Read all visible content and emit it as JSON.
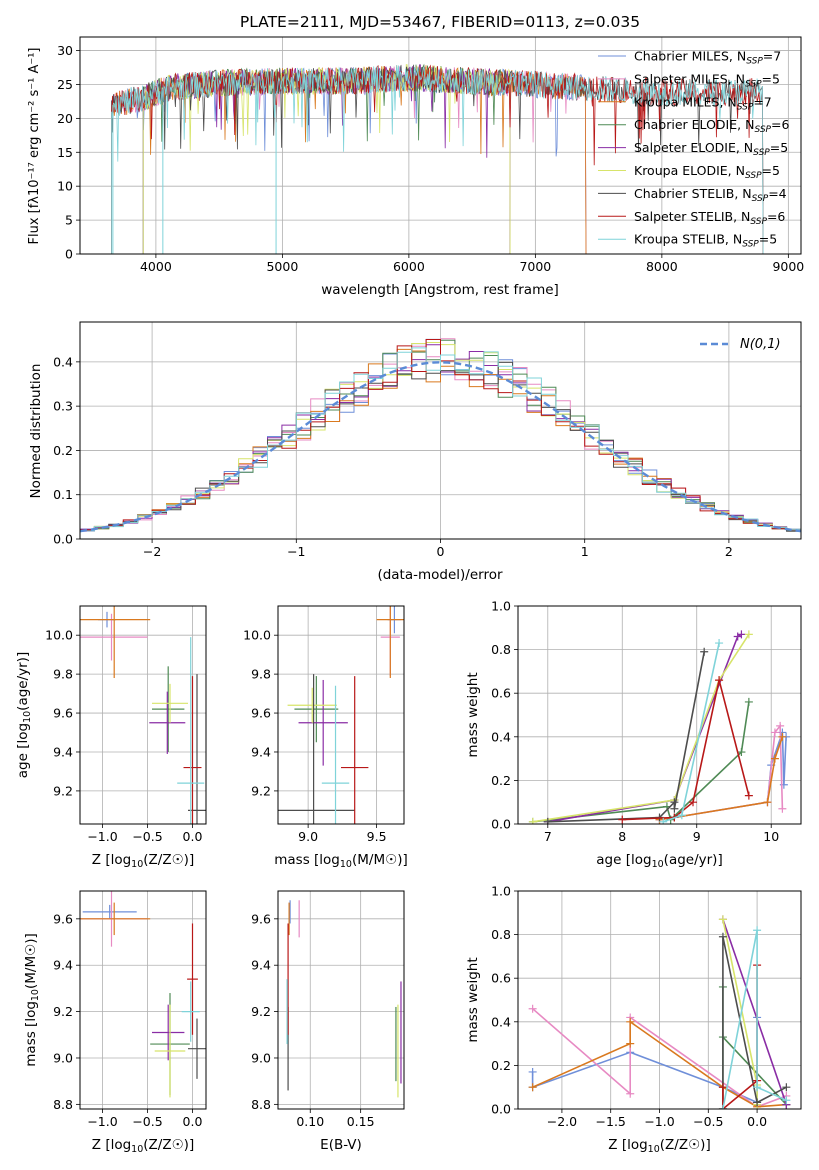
{
  "colors": {
    "frame": "#000000",
    "grid": "#b0b0b0",
    "gauss": "#5b8bd6",
    "series": [
      "#6f8fd9",
      "#e78ac3",
      "#d9791f",
      "#4f8a55",
      "#8a2da5",
      "#d7e46a",
      "#4d4d4d",
      "#b81818",
      "#7fd3d9"
    ]
  },
  "chart_data": [
    {
      "id": "spectrum",
      "type": "line",
      "title": "PLATE=2111, MJD=53467, FIBERID=0113, z=0.035",
      "xlabel": "wavelength [Angstrom, rest frame]",
      "ylabel": "Flux [fλ10⁻¹⁷ erg cm⁻² s⁻¹ A⁻¹]",
      "xlim": [
        3400,
        9100
      ],
      "ylim": [
        0,
        32
      ],
      "xticks": [
        4000,
        5000,
        6000,
        7000,
        8000,
        9000
      ],
      "yticks": [
        0,
        5,
        10,
        15,
        20,
        25,
        30
      ],
      "legend_position": "upper-right",
      "series": [
        {
          "name": "Chabrier MILES, N_SSP=7",
          "label_main": "Chabrier MILES, N",
          "label_sub": "SSP",
          "label_end": "=7",
          "x_range": [
            3650,
            7400
          ]
        },
        {
          "name": "Salpeter MILES, N_SSP=5",
          "label_main": "Salpeter MILES, N",
          "label_sub": "SSP",
          "label_end": "=5",
          "x_range": [
            3650,
            7400
          ]
        },
        {
          "name": "Kroupa MILES, N_SSP=7",
          "label_main": "Kroupa MILES, N",
          "label_sub": "SSP",
          "label_end": "=7",
          "x_range": [
            3650,
            7400
          ]
        },
        {
          "name": "Chabrier ELODIE, N_SSP=6",
          "label_main": "Chabrier ELODIE, N",
          "label_sub": "SSP",
          "label_end": "=6",
          "x_range": [
            3900,
            6800
          ]
        },
        {
          "name": "Salpeter ELODIE, N_SSP=5",
          "label_main": "Salpeter ELODIE, N",
          "label_sub": "SSP",
          "label_end": "=5",
          "x_range": [
            3900,
            6800
          ]
        },
        {
          "name": "Kroupa ELODIE, N_SSP=5",
          "label_main": "Kroupa ELODIE, N",
          "label_sub": "SSP",
          "label_end": "=5",
          "x_range": [
            3900,
            6800
          ]
        },
        {
          "name": "Chabrier STELIB, N_SSP=4",
          "label_main": "Chabrier STELIB, N",
          "label_sub": "SSP",
          "label_end": "=4",
          "x_range": [
            3650,
            8800
          ]
        },
        {
          "name": "Salpeter STELIB, N_SSP=6",
          "label_main": "Salpeter STELIB, N",
          "label_sub": "SSP",
          "label_end": "=6",
          "x_range": [
            3650,
            8800
          ]
        },
        {
          "name": "Kroupa STELIB, N_SSP=5",
          "label_main": "Kroupa STELIB, N",
          "label_sub": "SSP",
          "label_end": "=5",
          "x_range": [
            3650,
            8800
          ]
        }
      ],
      "continuum": [
        [
          3650,
          22
        ],
        [
          3900,
          23
        ],
        [
          4100,
          24.5
        ],
        [
          4500,
          25.2
        ],
        [
          5000,
          25.5
        ],
        [
          5500,
          25.5
        ],
        [
          6000,
          26
        ],
        [
          6500,
          25.5
        ],
        [
          7000,
          25
        ],
        [
          7400,
          24.5
        ],
        [
          7800,
          24
        ],
        [
          8200,
          23.8
        ],
        [
          8800,
          24
        ]
      ]
    },
    {
      "id": "residuals",
      "type": "line",
      "xlabel": "(data-model)/error",
      "ylabel": "Normed distribution",
      "xlim": [
        -2.5,
        2.5
      ],
      "ylim": [
        0,
        0.49
      ],
      "xticks": [
        -2,
        -1,
        0,
        1,
        2
      ],
      "yticks": [
        0.0,
        0.1,
        0.2,
        0.3,
        0.4
      ],
      "legend_position": "upper-right",
      "legend_label": "N(0,1)",
      "gaussian": {
        "mu": 0,
        "sigma": 1
      },
      "bin_width": 0.1
    },
    {
      "id": "age_Z",
      "type": "scatter",
      "xlabel_main": "Z [log",
      "xlabel_sub": "10",
      "xlabel_end": "(Z/Z☉)]",
      "ylabel_main": "age  [log",
      "ylabel_sub": "10",
      "ylabel_end": "(age/yr)]",
      "xlim": [
        -1.25,
        0.15
      ],
      "ylim": [
        9.03,
        10.15
      ],
      "xticks": [
        -1.0,
        -0.5,
        0.0
      ],
      "yticks": [
        9.2,
        9.4,
        9.6,
        9.8,
        10.0
      ],
      "points": [
        {
          "x": -0.95,
          "y": 10.08,
          "xerr": 0.1,
          "yerr": 0.04
        },
        {
          "x": -0.9,
          "y": 9.99,
          "xerr": 0.4,
          "yerr": 0.12
        },
        {
          "x": -0.87,
          "y": 10.08,
          "xerr": 0.4,
          "yerr": 0.3
        },
        {
          "x": -0.27,
          "y": 9.62,
          "xerr": 0.18,
          "yerr": 0.22
        },
        {
          "x": -0.28,
          "y": 9.55,
          "xerr": 0.2,
          "yerr": 0.16
        },
        {
          "x": -0.25,
          "y": 9.65,
          "xerr": 0.2,
          "yerr": 0.1
        },
        {
          "x": 0.05,
          "y": 9.1,
          "xerr": 0.1,
          "yerr": 0.7
        },
        {
          "x": 0.0,
          "y": 9.32,
          "xerr": 0.1,
          "yerr": 0.47
        },
        {
          "x": -0.02,
          "y": 9.24,
          "xerr": 0.15,
          "yerr": 0.75
        }
      ]
    },
    {
      "id": "age_mass",
      "type": "scatter",
      "xlabel_main": "mass [log",
      "xlabel_sub": "10",
      "xlabel_end": "(M/M☉)]",
      "ylim": [
        9.03,
        10.15
      ],
      "xlim": [
        8.78,
        9.7
      ],
      "xticks": [
        9.0,
        9.5
      ],
      "yticks": [
        9.2,
        9.4,
        9.6,
        9.8,
        10.0
      ],
      "points": [
        {
          "x": 9.63,
          "y": 10.08,
          "xerr": 0.05,
          "yerr": 0.07
        },
        {
          "x": 9.6,
          "y": 9.99,
          "xerr": 0.07,
          "yerr": 0.2
        },
        {
          "x": 9.6,
          "y": 10.08,
          "xerr": 0.1,
          "yerr": 0.3
        },
        {
          "x": 9.06,
          "y": 9.62,
          "xerr": 0.16,
          "yerr": 0.17
        },
        {
          "x": 9.11,
          "y": 9.55,
          "xerr": 0.18,
          "yerr": 0.22
        },
        {
          "x": 9.03,
          "y": 9.64,
          "xerr": 0.18,
          "yerr": 0.09
        },
        {
          "x": 9.04,
          "y": 9.1,
          "xerr": 0.3,
          "yerr": 0.7
        },
        {
          "x": 9.34,
          "y": 9.32,
          "xerr": 0.1,
          "yerr": 0.47
        },
        {
          "x": 9.2,
          "y": 9.24,
          "xerr": 0.1,
          "yerr": 0.5
        }
      ]
    },
    {
      "id": "weight_age",
      "type": "line",
      "xlabel_main": "age  [log",
      "xlabel_sub": "10",
      "xlabel_end": "(age/yr)]",
      "ylabel": "mass weight",
      "xlim": [
        6.6,
        10.4
      ],
      "ylim": [
        0,
        1.0
      ],
      "xticks": [
        7,
        8,
        9,
        10
      ],
      "yticks": [
        0.0,
        0.2,
        0.4,
        0.6,
        0.8,
        1.0
      ],
      "series": [
        {
          "x": [
            8.5,
            8.7,
            9.95,
            10.0,
            10.15,
            10.17,
            10.2
          ],
          "y": [
            0.02,
            0.03,
            0.1,
            0.27,
            0.42,
            0.18,
            0.4
          ]
        },
        {
          "x": [
            8.5,
            8.7,
            9.95,
            10.05,
            10.12,
            10.15
          ],
          "y": [
            0.02,
            0.03,
            0.1,
            0.42,
            0.45,
            0.07
          ]
        },
        {
          "x": [
            8.5,
            8.7,
            9.95,
            10.05,
            10.15
          ],
          "y": [
            0.02,
            0.03,
            0.1,
            0.3,
            0.4
          ]
        },
        {
          "x": [
            6.8,
            8.6,
            8.65,
            9.6,
            9.7
          ],
          "y": [
            0.01,
            0.08,
            0.02,
            0.33,
            0.56
          ]
        },
        {
          "x": [
            7.0,
            8.7,
            9.55,
            9.6
          ],
          "y": [
            0.01,
            0.11,
            0.86,
            0.87
          ]
        },
        {
          "x": [
            6.8,
            8.7,
            9.3,
            9.7
          ],
          "y": [
            0.01,
            0.11,
            0.66,
            0.87
          ]
        },
        {
          "x": [
            7.0,
            8.5,
            8.7,
            8.7,
            9.1
          ],
          "y": [
            0.01,
            0.03,
            0.1,
            0.07,
            0.79
          ]
        },
        {
          "x": [
            8.0,
            8.7,
            8.95,
            9.3,
            9.7
          ],
          "y": [
            0.02,
            0.03,
            0.1,
            0.66,
            0.13
          ]
        },
        {
          "x": [
            8.55,
            8.8,
            9.3
          ],
          "y": [
            0.01,
            0.04,
            0.83
          ]
        }
      ]
    },
    {
      "id": "mass_Z",
      "type": "scatter",
      "xlabel_main": "Z [log",
      "xlabel_sub": "10",
      "xlabel_end": "(Z/Z☉)]",
      "ylabel_main": "mass [log",
      "ylabel_sub": "10",
      "ylabel_end": "(M/M☉)]",
      "xlim": [
        -1.25,
        0.15
      ],
      "ylim": [
        8.78,
        9.72
      ],
      "xticks": [
        -1.0,
        -0.5,
        0.0
      ],
      "yticks": [
        8.8,
        9.0,
        9.2,
        9.4,
        9.6
      ],
      "points": [
        {
          "x": -0.92,
          "y": 9.63,
          "xerr": 0.3,
          "yerr": 0.03
        },
        {
          "x": -0.9,
          "y": 9.6,
          "xerr": 0.4,
          "yerr": 0.12
        },
        {
          "x": -0.87,
          "y": 9.6,
          "xerr": 0.4,
          "yerr": 0.07
        },
        {
          "x": -0.25,
          "y": 9.06,
          "xerr": 0.22,
          "yerr": 0.22
        },
        {
          "x": -0.27,
          "y": 9.11,
          "xerr": 0.18,
          "yerr": 0.12
        },
        {
          "x": -0.25,
          "y": 9.03,
          "xerr": 0.17,
          "yerr": 0.2
        },
        {
          "x": 0.05,
          "y": 9.04,
          "xerr": 0.1,
          "yerr": 0.13
        },
        {
          "x": 0.0,
          "y": 9.34,
          "xerr": 0.06,
          "yerr": 0.24
        },
        {
          "x": -0.02,
          "y": 9.2,
          "xerr": 0.1,
          "yerr": 0.13
        }
      ]
    },
    {
      "id": "mass_EBV",
      "type": "scatter",
      "xlabel": "E(B-V)",
      "xlim": [
        0.068,
        0.193
      ],
      "ylim": [
        8.78,
        9.72
      ],
      "xticks": [
        0.1,
        0.15
      ],
      "yticks": [
        8.8,
        9.0,
        9.2,
        9.4,
        9.6
      ],
      "points": [
        {
          "x": 0.08,
          "y": 9.63,
          "xerr": 0,
          "yerr": 0.05
        },
        {
          "x": 0.089,
          "y": 9.6,
          "xerr": 0,
          "yerr": 0.08
        },
        {
          "x": 0.079,
          "y": 9.6,
          "xerr": 0,
          "yerr": 0.07
        },
        {
          "x": 0.185,
          "y": 9.06,
          "xerr": 0,
          "yerr": 0.16
        },
        {
          "x": 0.19,
          "y": 9.11,
          "xerr": 0,
          "yerr": 0.22
        },
        {
          "x": 0.187,
          "y": 9.03,
          "xerr": 0,
          "yerr": 0.2
        },
        {
          "x": 0.078,
          "y": 9.04,
          "xerr": 0,
          "yerr": 0.18
        },
        {
          "x": 0.078,
          "y": 9.34,
          "xerr": 0,
          "yerr": 0.24
        },
        {
          "x": 0.077,
          "y": 9.2,
          "xerr": 0,
          "yerr": 0.14
        }
      ]
    },
    {
      "id": "weight_Z",
      "type": "line",
      "xlabel_main": "Z [log",
      "xlabel_sub": "10",
      "xlabel_end": "(Z/Z☉)]",
      "ylabel": "mass weight",
      "xlim": [
        -2.45,
        0.45
      ],
      "ylim": [
        0,
        1.0
      ],
      "xticks": [
        -2.0,
        -1.5,
        -1.0,
        -0.5,
        0.0
      ],
      "yticks": [
        0.0,
        0.2,
        0.4,
        0.6,
        0.8,
        1.0
      ],
      "series": [
        {
          "x": [
            -2.3,
            -2.3,
            -1.3,
            -0.35,
            0.0,
            0.0
          ],
          "y": [
            0.17,
            0.1,
            0.26,
            0.1,
            0.03,
            0.42
          ]
        },
        {
          "x": [
            -2.3,
            -1.3,
            -1.3,
            0.0,
            0.3
          ],
          "y": [
            0.46,
            0.07,
            0.42,
            0.01,
            0.06
          ]
        },
        {
          "x": [
            -2.3,
            -1.3,
            -1.3,
            -0.35,
            0.0,
            0.3
          ],
          "y": [
            0.1,
            0.3,
            0.4,
            0.1,
            0.01,
            0.02
          ]
        },
        {
          "x": [
            -0.35,
            -0.35,
            -0.35,
            0.3
          ],
          "y": [
            0.0,
            0.56,
            0.33,
            0.02
          ]
        },
        {
          "x": [
            -0.35,
            0.3
          ],
          "y": [
            0.87,
            0.02
          ]
        },
        {
          "x": [
            -0.35,
            0.0,
            0.0
          ],
          "y": [
            0.87,
            0.11,
            0.02
          ]
        },
        {
          "x": [
            -0.35,
            -0.35,
            0.0,
            0.3
          ],
          "y": [
            0.0,
            0.79,
            0.03,
            0.1
          ]
        },
        {
          "x": [
            -0.35,
            -0.35,
            0.0,
            0.0
          ],
          "y": [
            0.1,
            0.0,
            0.13,
            0.66
          ]
        },
        {
          "x": [
            -0.35,
            0.0,
            0.0,
            0.3
          ],
          "y": [
            0.0,
            0.82,
            0.1,
            0.04
          ]
        }
      ]
    }
  ]
}
